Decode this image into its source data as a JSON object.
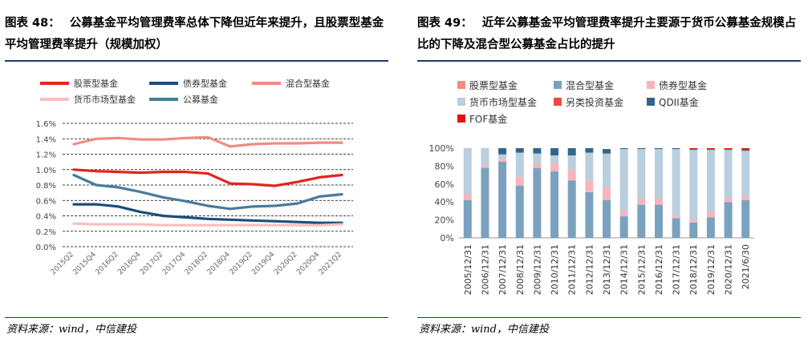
{
  "left": {
    "fig_label": "图表 48：",
    "title": "公募基金平均管理费率总体下降但近年来提升，且股票型基金平均管理费率提升（规模加权）",
    "source": "资料来源：wind，中信建投"
  },
  "right": {
    "fig_label": "图表 49：",
    "title": "近年公募基金平均管理费率提升主要源于货币公募基金规模占比的下降及混合型公募基金占比的提升",
    "source": "资料来源：wind，中信建投"
  },
  "chart_data": [
    {
      "type": "line",
      "title": "",
      "categories": [
        "2015Q2",
        "2015Q4",
        "2016Q2",
        "2016Q4",
        "2017Q2",
        "2017Q4",
        "2018Q2",
        "2018Q4",
        "2019Q2",
        "2019Q4",
        "2020Q2",
        "2020Q4",
        "2021Q2"
      ],
      "yticks": [
        "0.0%",
        "0.2%",
        "0.4%",
        "0.6%",
        "0.8%",
        "1.0%",
        "1.2%",
        "1.4%",
        "1.6%"
      ],
      "ylim": [
        0,
        1.6
      ],
      "grid": true,
      "legend_position": "top",
      "series": [
        {
          "name": "股票型基金",
          "color": "#e3241b",
          "values": [
            1.0,
            0.98,
            0.97,
            0.96,
            0.97,
            0.97,
            0.95,
            0.82,
            0.81,
            0.79,
            0.84,
            0.9,
            0.93
          ]
        },
        {
          "name": "债券型基金",
          "color": "#1b4e7a",
          "values": [
            0.55,
            0.55,
            0.52,
            0.45,
            0.4,
            0.38,
            0.36,
            0.35,
            0.34,
            0.33,
            0.32,
            0.31,
            0.31
          ]
        },
        {
          "name": "混合型基金",
          "color": "#f08c82",
          "values": [
            1.33,
            1.4,
            1.41,
            1.39,
            1.39,
            1.41,
            1.42,
            1.3,
            1.33,
            1.34,
            1.34,
            1.35,
            1.35
          ]
        },
        {
          "name": "货币市场型基金",
          "color": "#f8c0c0",
          "values": [
            0.3,
            0.29,
            0.29,
            0.29,
            0.28,
            0.28,
            0.28,
            0.28,
            0.28,
            0.28,
            0.28,
            0.28,
            0.29
          ]
        },
        {
          "name": "公募基金",
          "color": "#4a7a9c",
          "values": [
            0.93,
            0.8,
            0.77,
            0.71,
            0.64,
            0.59,
            0.53,
            0.49,
            0.52,
            0.53,
            0.56,
            0.65,
            0.68
          ]
        }
      ]
    },
    {
      "type": "bar",
      "stacked": true,
      "title": "",
      "categories": [
        "2005/12/31",
        "2006/12/31",
        "2007/12/31",
        "2008/12/31",
        "2009/12/31",
        "2010/12/31",
        "2011/12/31",
        "2012/12/31",
        "2013/12/31",
        "2014/12/31",
        "2015/12/31",
        "2016/12/31",
        "2017/12/31",
        "2018/12/31",
        "2019/12/31",
        "2020/12/31",
        "2021/6/30"
      ],
      "yticks": [
        "0%",
        "20%",
        "40%",
        "60%",
        "80%",
        "100%"
      ],
      "ylim": [
        0,
        100
      ],
      "legend_position": "top",
      "series": [
        {
          "name": "股票型基金",
          "color": "#f08c86",
          "values": [
            0,
            0,
            0,
            0,
            0,
            0,
            0,
            0,
            0,
            0,
            0,
            0,
            0,
            0,
            0,
            0,
            0
          ]
        },
        {
          "name": "混合型基金",
          "color": "#7aa2bf",
          "values": [
            42,
            78,
            85,
            58,
            78,
            74,
            64,
            51,
            42,
            24,
            37,
            37,
            22,
            17,
            23,
            40,
            42
          ]
        },
        {
          "name": "债券型基金",
          "color": "#f7b4bc",
          "values": [
            7,
            3,
            3,
            10,
            5,
            10,
            12,
            13,
            14,
            6,
            7,
            7,
            2,
            3,
            6,
            4,
            5
          ]
        },
        {
          "name": "货币市场型基金",
          "color": "#b9cede",
          "values": [
            51,
            19,
            5,
            27,
            11,
            8,
            16,
            31,
            38,
            69,
            55,
            55,
            75,
            78,
            69,
            54,
            50
          ]
        },
        {
          "name": "另类投资基金",
          "color": "#ee4a3a",
          "values": [
            0,
            0,
            0,
            0,
            0,
            0,
            0,
            0,
            0,
            0,
            0,
            0,
            0,
            0,
            0,
            0,
            0
          ]
        },
        {
          "name": "QDII基金",
          "color": "#33658a",
          "values": [
            0,
            0,
            7,
            5,
            6,
            8,
            8,
            5,
            5,
            1,
            1,
            1,
            1,
            1,
            1,
            1,
            1
          ]
        },
        {
          "name": "FOF基金",
          "color": "#e11414",
          "values": [
            0,
            0,
            0,
            0,
            0,
            0,
            0,
            0,
            0,
            0,
            0,
            0,
            0,
            1,
            1,
            1,
            2
          ]
        }
      ]
    }
  ]
}
